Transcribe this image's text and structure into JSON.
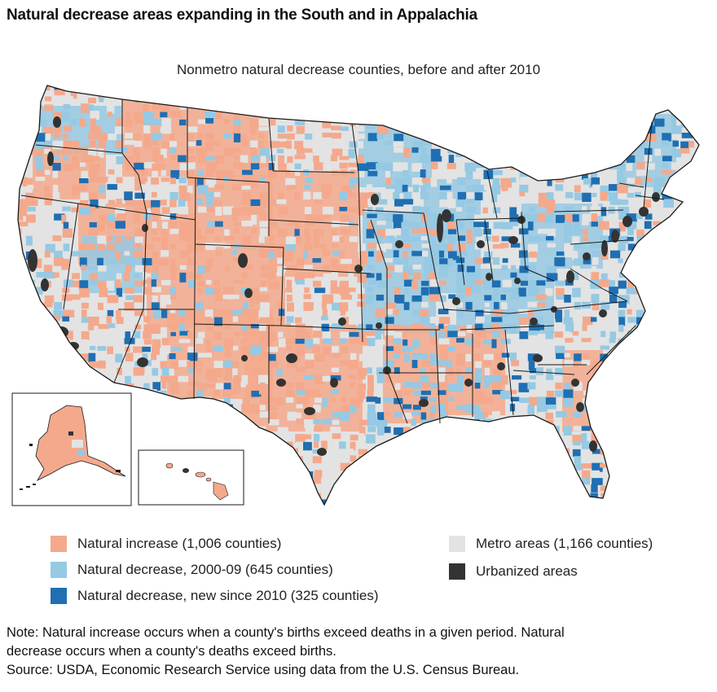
{
  "title": "Natural decrease areas expanding in the South and in Appalachia",
  "subtitle": "Nonmetro natural decrease counties, before and after 2010",
  "colors": {
    "natural_increase": "#f4a98c",
    "natural_decrease_2000_09": "#96c9e3",
    "natural_decrease_new": "#1f6fb2",
    "metro": "#e3e3e3",
    "urbanized": "#333333",
    "border": "#1a1a1a"
  },
  "legend": [
    {
      "key": "natural_increase",
      "label": "Natural increase (1,006 counties)"
    },
    {
      "key": "natural_decrease_2000_09",
      "label": "Natural decrease, 2000-09 (645 counties)"
    },
    {
      "key": "natural_decrease_new",
      "label": "Natural decrease, new since 2010 (325 counties)"
    },
    {
      "key": "metro",
      "label": "Metro areas (1,166 counties)"
    },
    {
      "key": "urbanized",
      "label": "Urbanized areas"
    }
  ],
  "notes": [
    "Note: Natural increase occurs when a county's births exceed deaths in a given period. Natural",
    "decrease occurs when a county's deaths exceed births.",
    "Source: USDA, Economic Research Service using data from the U.S. Census Bureau."
  ]
}
